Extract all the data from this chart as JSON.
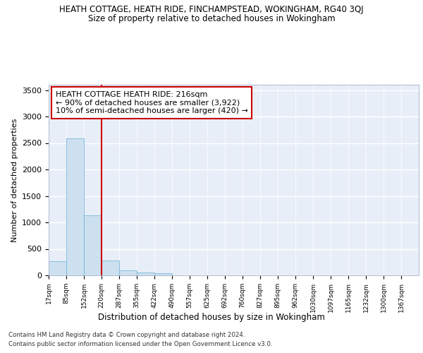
{
  "title": "HEATH COTTAGE, HEATH RIDE, FINCHAMPSTEAD, WOKINGHAM, RG40 3QJ",
  "subtitle": "Size of property relative to detached houses in Wokingham",
  "xlabel": "Distribution of detached houses by size in Wokingham",
  "ylabel": "Number of detached properties",
  "bar_values": [
    270,
    2590,
    1130,
    280,
    95,
    55,
    40,
    0,
    0,
    0,
    0,
    0,
    0,
    0,
    0,
    0,
    0,
    0,
    0,
    0,
    0
  ],
  "categories": [
    "17sqm",
    "85sqm",
    "152sqm",
    "220sqm",
    "287sqm",
    "355sqm",
    "422sqm",
    "490sqm",
    "557sqm",
    "625sqm",
    "692sqm",
    "760sqm",
    "827sqm",
    "895sqm",
    "962sqm",
    "1030sqm",
    "1097sqm",
    "1165sqm",
    "1232sqm",
    "1300sqm",
    "1367sqm"
  ],
  "bar_color": "#cce0f0",
  "bar_edge_color": "#6aaed6",
  "vline_x": 3,
  "vline_color": "#cc0000",
  "annotation_text": "HEATH COTTAGE HEATH RIDE: 216sqm\n← 90% of detached houses are smaller (3,922)\n10% of semi-detached houses are larger (420) →",
  "annotation_box_color": "white",
  "annotation_box_edge_color": "#cc0000",
  "ylim": [
    0,
    3600
  ],
  "yticks": [
    0,
    500,
    1000,
    1500,
    2000,
    2500,
    3000,
    3500
  ],
  "footer_line1": "Contains HM Land Registry data © Crown copyright and database right 2024.",
  "footer_line2": "Contains public sector information licensed under the Open Government Licence v3.0.",
  "bg_color": "#e8eef8",
  "grid_color": "#ffffff",
  "title_fontsize": 8.5,
  "subtitle_fontsize": 8.5,
  "annotation_fontsize": 8
}
